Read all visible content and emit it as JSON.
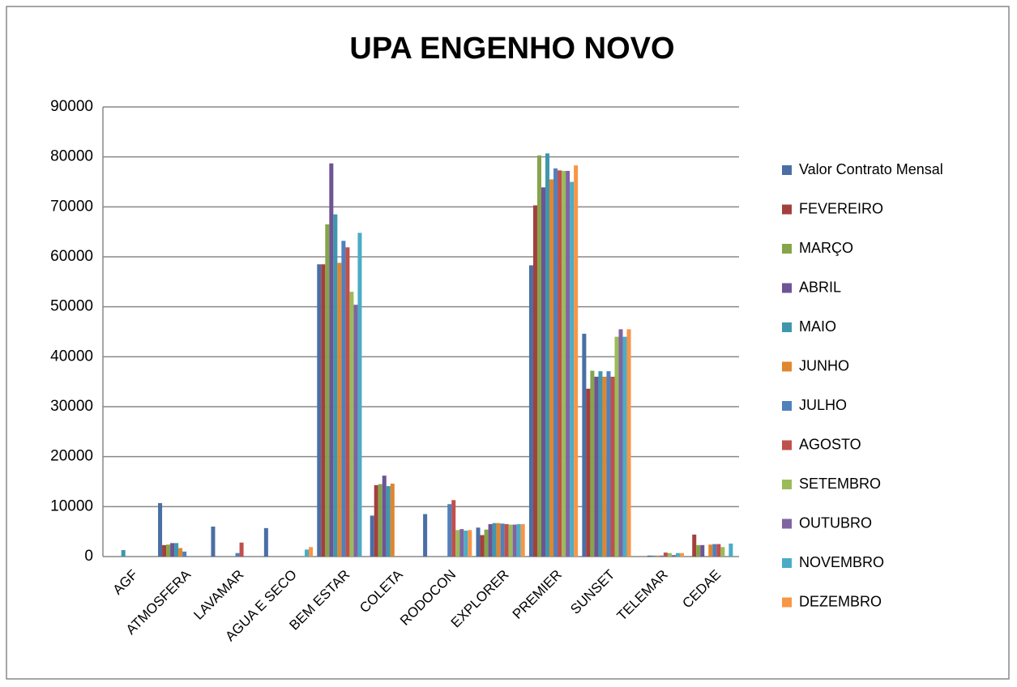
{
  "chart_data": {
    "type": "bar",
    "title": "UPA ENGENHO NOVO",
    "categories": [
      "AGF",
      "ATMOSFERA",
      "LAVAMAR",
      "AGUA E SECO",
      "BEM ESTAR",
      "COLETA",
      "RODOCON",
      "EXPLORER",
      "PREMIER",
      "SUNSET",
      "TELEMAR",
      "CEDAE"
    ],
    "series": [
      {
        "name": "Valor Contrato Mensal",
        "color": "#4a6fa5",
        "values": [
          0,
          10700,
          6000,
          5700,
          58500,
          8200,
          8500,
          5800,
          58300,
          44600,
          0,
          0
        ]
      },
      {
        "name": "FEVEREIRO",
        "color": "#a3403d",
        "values": [
          0,
          2300,
          0,
          0,
          58500,
          14300,
          0,
          4300,
          70300,
          33600,
          0,
          4400
        ]
      },
      {
        "name": "MARÇO",
        "color": "#86a44a",
        "values": [
          0,
          2400,
          0,
          0,
          66500,
          14500,
          0,
          5400,
          80300,
          37200,
          0,
          2300
        ]
      },
      {
        "name": "ABRIL",
        "color": "#6e5494",
        "values": [
          0,
          2700,
          0,
          0,
          78700,
          16200,
          0,
          6500,
          73900,
          36000,
          200,
          2300
        ]
      },
      {
        "name": "MAIO",
        "color": "#3f97ad",
        "values": [
          1300,
          2700,
          0,
          0,
          68500,
          14100,
          0,
          6700,
          80700,
          37100,
          200,
          0
        ]
      },
      {
        "name": "JUNHO",
        "color": "#e0862f",
        "values": [
          0,
          1700,
          0,
          0,
          58800,
          14600,
          0,
          6700,
          75500,
          36000,
          200,
          2400
        ]
      },
      {
        "name": "JULHO",
        "color": "#4f81bd",
        "values": [
          0,
          1000,
          700,
          0,
          63200,
          0,
          10500,
          6600,
          77700,
          37100,
          200,
          2500
        ]
      },
      {
        "name": "AGOSTO",
        "color": "#c0504d",
        "values": [
          0,
          0,
          2800,
          0,
          61900,
          0,
          11300,
          6500,
          77300,
          36000,
          800,
          2500
        ]
      },
      {
        "name": "SETEMBRO",
        "color": "#9bbb59",
        "values": [
          0,
          0,
          0,
          0,
          53000,
          0,
          5300,
          6400,
          77200,
          44000,
          700,
          1900
        ]
      },
      {
        "name": "OUTUBRO",
        "color": "#8064a2",
        "values": [
          0,
          0,
          0,
          0,
          50400,
          0,
          5500,
          6400,
          77200,
          45500,
          300,
          0
        ]
      },
      {
        "name": "NOVEMBRO",
        "color": "#4bacc6",
        "values": [
          0,
          0,
          0,
          1400,
          64800,
          0,
          5200,
          6500,
          75000,
          44000,
          700,
          2600
        ]
      },
      {
        "name": "DEZEMBRO",
        "color": "#f79646",
        "values": [
          0,
          0,
          0,
          1900,
          0,
          0,
          5300,
          6500,
          78300,
          45500,
          700,
          0
        ]
      }
    ],
    "ylim": [
      0,
      90000
    ],
    "yticks": [
      0,
      10000,
      20000,
      30000,
      40000,
      50000,
      60000,
      70000,
      80000,
      90000
    ],
    "grid": true,
    "legend": "right"
  }
}
